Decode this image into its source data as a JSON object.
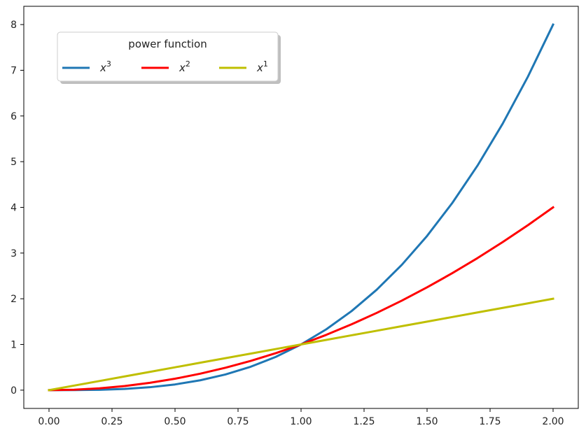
{
  "chart_data": {
    "type": "line",
    "title": "",
    "xlabel": "",
    "ylabel": "",
    "xlim": [
      -0.1,
      2.1
    ],
    "ylim": [
      -0.4,
      8.4
    ],
    "xticks": [
      0.0,
      0.25,
      0.5,
      0.75,
      1.0,
      1.25,
      1.5,
      1.75,
      2.0
    ],
    "xtick_labels": [
      "0.00",
      "0.25",
      "0.50",
      "0.75",
      "1.00",
      "1.25",
      "1.50",
      "1.75",
      "2.00"
    ],
    "yticks": [
      0,
      1,
      2,
      3,
      4,
      5,
      6,
      7,
      8
    ],
    "ytick_labels": [
      "0",
      "1",
      "2",
      "3",
      "4",
      "5",
      "6",
      "7",
      "8"
    ],
    "grid": false,
    "legend": {
      "title": "power function",
      "placement": "upper-left",
      "columns": 3,
      "shadow": true,
      "entries": [
        {
          "base": "x",
          "exp": "3"
        },
        {
          "base": "x",
          "exp": "2"
        },
        {
          "base": "x",
          "exp": "1"
        }
      ]
    },
    "x": [
      0.0,
      0.1,
      0.2,
      0.3,
      0.4,
      0.5,
      0.6,
      0.7,
      0.8,
      0.9,
      1.0,
      1.1,
      1.2,
      1.3,
      1.4,
      1.5,
      1.6,
      1.7,
      1.8,
      1.9,
      2.0
    ],
    "series": [
      {
        "color": "#1f77b4",
        "values": [
          0.0,
          0.001,
          0.008,
          0.027,
          0.064,
          0.125,
          0.216,
          0.343,
          0.512,
          0.729,
          1.0,
          1.331,
          1.728,
          2.197,
          2.744,
          3.375,
          4.096,
          4.913,
          5.832,
          6.859,
          8.0
        ]
      },
      {
        "color": "#ff0000",
        "values": [
          0.0,
          0.01,
          0.04,
          0.09,
          0.16,
          0.25,
          0.36,
          0.49,
          0.64,
          0.81,
          1.0,
          1.21,
          1.44,
          1.69,
          1.96,
          2.25,
          2.56,
          2.89,
          3.24,
          3.61,
          4.0
        ]
      },
      {
        "color": "#bfbf00",
        "values": [
          0.0,
          0.1,
          0.2,
          0.3,
          0.4,
          0.5,
          0.6,
          0.7,
          0.8,
          0.9,
          1.0,
          1.1,
          1.2,
          1.3,
          1.4,
          1.5,
          1.6,
          1.7,
          1.8,
          1.9,
          2.0
        ]
      }
    ]
  }
}
